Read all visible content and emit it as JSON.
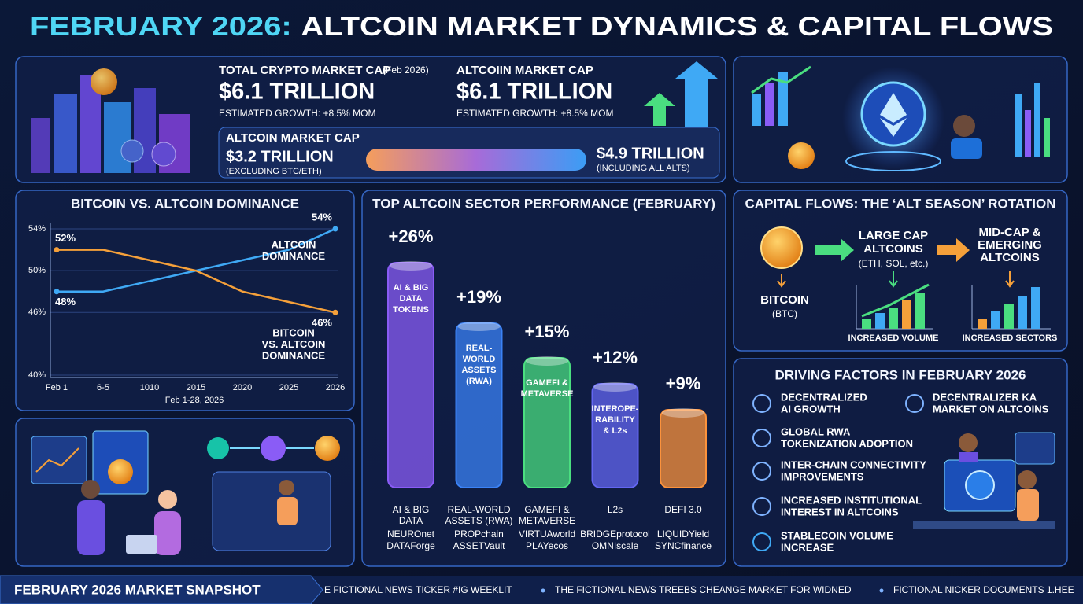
{
  "title_lead": "FEBRUARY 2026:",
  "title": "ALTCOIN MARKET DYNAMICS & CAPITAL FLOWS",
  "summary": {
    "total": {
      "label": "TOTAL CRYPTO MARKET CAP",
      "note": "(Feb 2026)",
      "value": "$6.1 TRILLION",
      "growth": "ESTIMATED GROWTH: +8.5% MOM"
    },
    "altcoin": {
      "label": "ALTCOIIN MARKET CAP",
      "value": "$6.1 TRILLION",
      "growth": "ESTIMATED GROWTH: +8.5% MOM"
    },
    "range": {
      "label": "ALTCOIN MARKET CAP",
      "low": "$3.2 TRILLION",
      "low_note": "(EXCLUDING BTC/ETH)",
      "high": "$4.9 TRILLION",
      "high_note": "(INCLUDING ALL ALTS)"
    }
  },
  "chart_data": [
    {
      "type": "line",
      "title": "BITCOIN VS. ALTCOIN DOMINANCE",
      "categories": [
        "Feb 1",
        "6-5",
        "1010",
        "2015",
        "2020",
        "2025",
        "2026"
      ],
      "xlabel": "Feb 1-28, 2026",
      "ylim": [
        40,
        54
      ],
      "yticks": [
        {
          "value": 40,
          "label": "40%"
        },
        {
          "value": 46,
          "label": "46%"
        },
        {
          "value": 50,
          "label": "50%"
        },
        {
          "value": 54,
          "label": "54%"
        }
      ],
      "grid": true,
      "series": [
        {
          "name": [
            "ALTCOIN",
            "DOMINANCE"
          ],
          "color": "#3fa9f5",
          "values": [
            48,
            48,
            49,
            50,
            51,
            52,
            54
          ],
          "value_labels": [
            "48%",
            null,
            null,
            null,
            null,
            null,
            "54%"
          ]
        },
        {
          "name": [
            "BITCOIN",
            "VS. ALTCOIN",
            "DOMINANCE"
          ],
          "color": "#f5a03a",
          "values": [
            52,
            52,
            51,
            50,
            48,
            47,
            46
          ],
          "value_labels": [
            "52%",
            null,
            null,
            null,
            null,
            null,
            "46%"
          ]
        }
      ]
    },
    {
      "type": "bar",
      "title": "TOP ALTCOIN SECTOR PERFORMANCE (FEBRUARY)",
      "categories": [
        [
          "AI & BIG",
          "DATA"
        ],
        [
          "REAL-WORLD",
          "ASSETS (RWA)"
        ],
        [
          "GAMEFI &",
          "METAVERSE"
        ],
        [
          "L2s"
        ],
        [
          "DEFI 3.0"
        ]
      ],
      "bar_labels": [
        [
          "AI & BIG",
          "DATA",
          "TOKENS"
        ],
        [
          "REAL-",
          "WORLD",
          "ASSETS",
          "(RWA)"
        ],
        [
          "GAMEFI &",
          "METAVERSE"
        ],
        [
          "INTEROPE-",
          "RABILITY",
          "& L2s"
        ],
        null
      ],
      "tokens": [
        [
          "NEUROnet",
          "DATAForge"
        ],
        [
          "PROPchain",
          "ASSETVault"
        ],
        [
          "VIRTUAworld",
          "PLAYecos"
        ],
        [
          "BRIDGEprotocol",
          "OMNIscale"
        ],
        [
          "LIQUIDYield",
          "SYNCfinance"
        ]
      ],
      "values": [
        26,
        19,
        15,
        12,
        9
      ],
      "value_labels": [
        "+26%",
        "+19%",
        "+15%",
        "+12%",
        "+9%"
      ],
      "colors": [
        "#8a5cf6",
        "#3b82f6",
        "#4ade80",
        "#6366f1",
        "#fb923c"
      ]
    }
  ],
  "capital_flows": {
    "title": "CAPITAL FLOWS: THE ‘ALT SEASON’ ROTATION",
    "source": {
      "name": "BITCOIN",
      "note": "(BTC)"
    },
    "large_cap": {
      "name": [
        "LARGE CAP",
        "ALTCOINS"
      ],
      "note": "(ETH, SOL, etc.)",
      "caption": "INCREASED VOLUME"
    },
    "mid_cap": {
      "name": [
        "MID-CAP &",
        "EMERGING",
        "ALTCOINS"
      ],
      "caption": "INCREASED SECTORS"
    }
  },
  "driving_factors": {
    "title": "DRIVING FACTORS IN FEBRUARY 2026",
    "items": [
      [
        "DECENTRALIZED",
        "AI GROWTH"
      ],
      [
        "DECENTRALIZER KA",
        "MARKET ON ALTCOINS"
      ],
      [
        "GLOBAL RWA",
        "TOKENIZATION ADOPTION"
      ],
      [
        "INTER-CHAIN CONNECTIVITY",
        "IMPROVEMENTS"
      ],
      [
        "INCREASED INSTITUTIONAL",
        "INTEREST IN ALTCOINS"
      ],
      [
        "STABLECOIN VOLUME",
        "INCREASE"
      ]
    ]
  },
  "footer": {
    "title": "FEBRUARY 2026 MARKET SNAPSHOT",
    "ticker": [
      "E FICTIONAL NEWS TICKER #IG WEEKLIT",
      "THE FICTIONAL NEWS TREEBS CHEANGE MARKET FOR WIDNED",
      "FICTIONAL NICKER DOCUMENTS 1.HEE"
    ]
  }
}
